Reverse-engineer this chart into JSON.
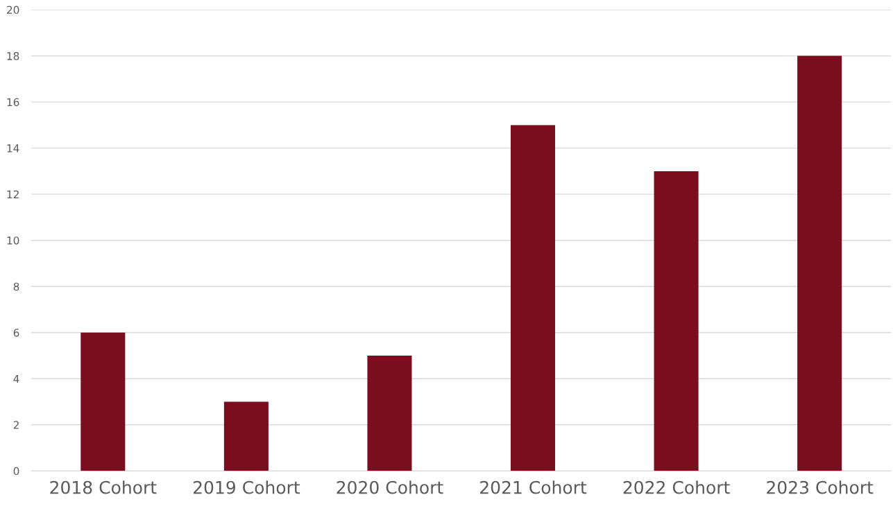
{
  "chart_data": {
    "type": "bar",
    "categories": [
      "2018 Cohort",
      "2019 Cohort",
      "2020 Cohort",
      "2021 Cohort",
      "2022 Cohort",
      "2023 Cohort"
    ],
    "values": [
      6,
      3,
      5,
      15,
      13,
      18
    ],
    "color": "#7b0e1e",
    "ylim": [
      0,
      20
    ],
    "yticks": [
      0,
      2,
      4,
      6,
      8,
      10,
      12,
      14,
      16,
      18,
      20
    ],
    "grid": "y",
    "legend": false
  }
}
